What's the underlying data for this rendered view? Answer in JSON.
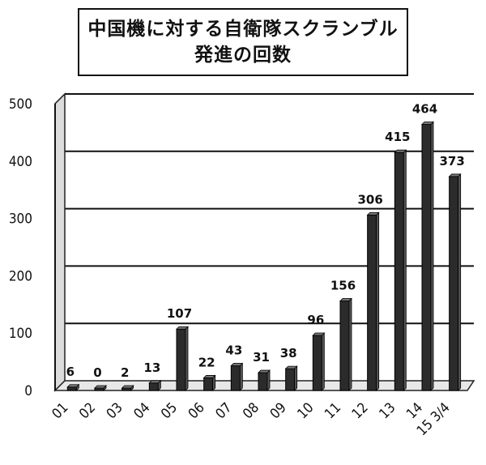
{
  "chart_data": {
    "type": "bar",
    "title": "中国機に対する自衛隊スクランブル",
    "subtitle": "発進の回数",
    "categories": [
      "01",
      "02",
      "03",
      "04",
      "05",
      "06",
      "07",
      "08",
      "09",
      "10",
      "11",
      "12",
      "13",
      "14",
      "15 3/4"
    ],
    "values": [
      6,
      0,
      2,
      13,
      107,
      22,
      43,
      31,
      38,
      96,
      156,
      306,
      415,
      464,
      373
    ],
    "data_labels": [
      "6",
      "0",
      "2",
      "13",
      "107",
      "22",
      "43",
      "31",
      "38",
      "96",
      "156",
      "306",
      "415",
      "464",
      "373"
    ],
    "y_ticks": [
      0,
      100,
      200,
      300,
      400,
      500
    ],
    "ylim": [
      0,
      500
    ],
    "xlabel": "",
    "ylabel": "",
    "grid": true,
    "legend": "none",
    "bar_color": "#2b2b2b"
  }
}
